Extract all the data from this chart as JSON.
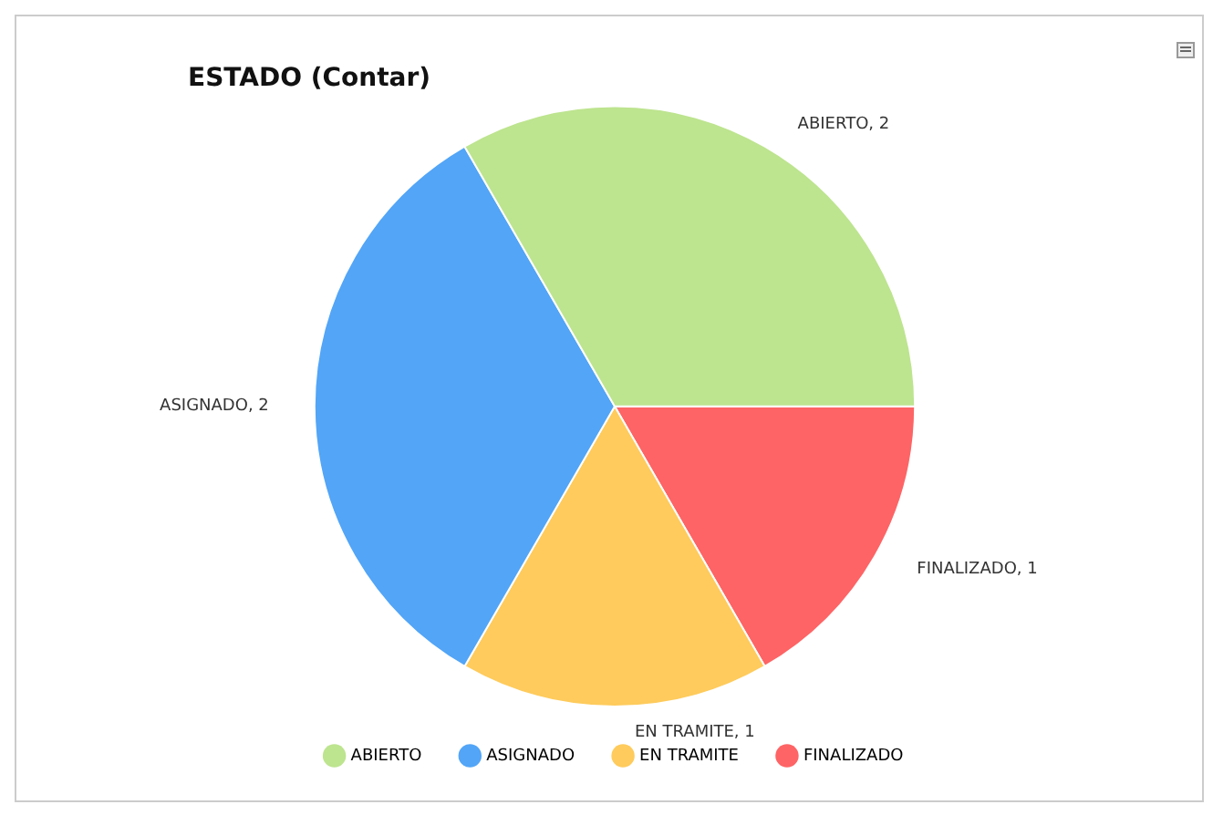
{
  "chart_data": {
    "type": "pie",
    "title": "ESTADO (Contar)",
    "categories": [
      "ABIERTO",
      "ASIGNADO",
      "EN TRAMITE",
      "FINALIZADO"
    ],
    "values": [
      2,
      2,
      1,
      1
    ],
    "colors": [
      "#bde48f",
      "#52a5f7",
      "#fecb5c",
      "#fe6465"
    ],
    "value_labels": [
      "ABIERTO, 2",
      "ASIGNADO, 2",
      "EN TRAMITE, 1",
      "FINALIZADO, 1"
    ],
    "legend": "bottom"
  }
}
